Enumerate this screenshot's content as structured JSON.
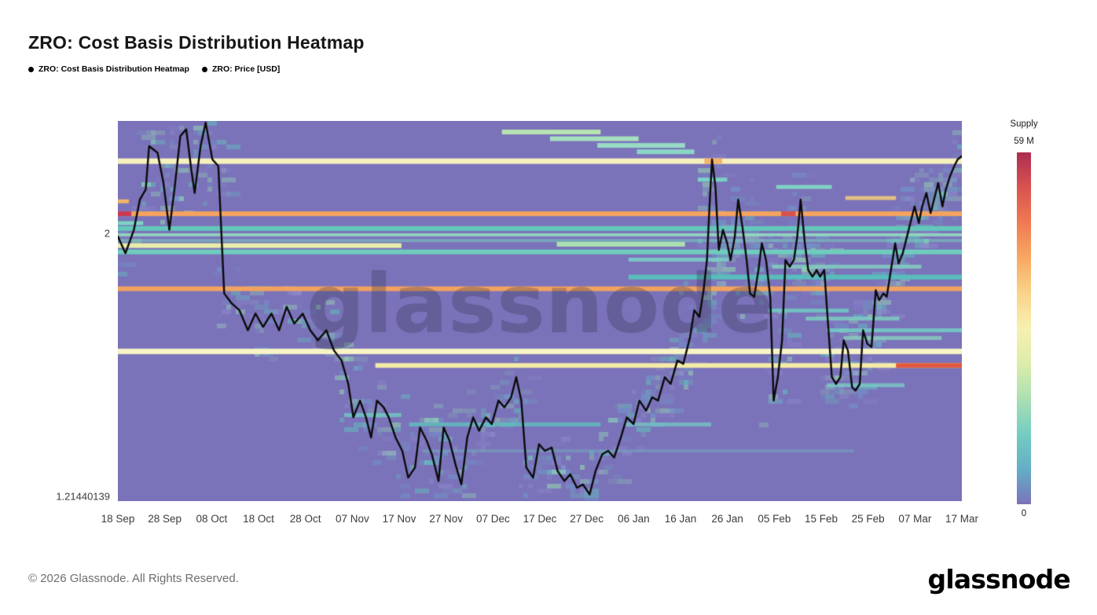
{
  "page": {
    "title": "ZRO: Cost Basis Distribution Heatmap",
    "footer_copyright": "© 2026 Glassnode. All Rights Reserved.",
    "brand_logo": "glassnode",
    "watermark": "glassnode"
  },
  "legend": {
    "items": [
      {
        "label": "ZRO: Cost Basis Distribution Heatmap"
      },
      {
        "label": "ZRO: Price [USD]"
      }
    ]
  },
  "colorbar": {
    "title": "Supply",
    "max_label": "59 M",
    "min_label": "0",
    "stops": [
      "#ad2d52",
      "#d95350",
      "#f07a52",
      "#f8a863",
      "#f9d389",
      "#f7f0b0",
      "#dcedaa",
      "#abdfb2",
      "#74cdc2",
      "#64aec6",
      "#7b73ba"
    ]
  },
  "chart_data": {
    "type": "heatmap",
    "title": "ZRO: Cost Basis Distribution Heatmap",
    "background_color": "#7b73ba",
    "price_line_color": "#0b0b0b",
    "watermark_color": "rgba(42,38,68,0.28)",
    "noise_palette": [
      "96,198,188",
      "150,220,176",
      "110,160,205",
      "144,138,206"
    ],
    "x_axis": {
      "ticks": [
        "18 Sep",
        "28 Sep",
        "08 Oct",
        "18 Oct",
        "28 Oct",
        "07 Nov",
        "17 Nov",
        "27 Nov",
        "07 Dec",
        "17 Dec",
        "27 Dec",
        "06 Jan",
        "16 Jan",
        "26 Jan",
        "05 Feb",
        "15 Feb",
        "25 Feb",
        "07 Mar",
        "17 Mar"
      ]
    },
    "y_axis": {
      "domain": [
        1.2,
        2.335
      ],
      "ticks": [
        {
          "label": "2",
          "price": 2.0
        },
        {
          "label": "1.21440139",
          "price": 1.2144
        }
      ]
    },
    "supply_bands": [
      {
        "p": 2.302,
        "x0": 0.455,
        "x1": 0.572,
        "c": "#b7e4b2",
        "h": 6
      },
      {
        "p": 2.282,
        "x0": 0.512,
        "x1": 0.617,
        "c": "#a6dfbd",
        "h": 6
      },
      {
        "p": 2.262,
        "x0": 0.568,
        "x1": 0.672,
        "c": "#97dbc4",
        "h": 6
      },
      {
        "p": 2.243,
        "x0": 0.615,
        "x1": 0.683,
        "c": "#8bd6c6",
        "h": 6
      },
      {
        "p": 2.215,
        "x0": 0,
        "x1": 1,
        "c": "#f6f0bd",
        "h": 7
      },
      {
        "p": 2.215,
        "x0": 0.695,
        "x1": 0.716,
        "c": "#f4b469",
        "h": 7
      },
      {
        "p": 2.16,
        "x0": 0.687,
        "x1": 0.722,
        "c": "#7bd0c4",
        "h": 5
      },
      {
        "p": 2.138,
        "x0": 0.78,
        "x1": 0.846,
        "c": "#80d2c2",
        "h": 5
      },
      {
        "p": 2.105,
        "x0": 0.862,
        "x1": 0.922,
        "c": "rgba(246,204,122,0.85)",
        "h": 5
      },
      {
        "p": 2.095,
        "x0": 0,
        "x1": 0.013,
        "c": "#f2b368",
        "h": 5
      },
      {
        "p": 2.058,
        "x0": 0,
        "x1": 1,
        "c": "#f4a45e",
        "h": 6
      },
      {
        "p": 2.058,
        "x0": 0,
        "x1": 0.016,
        "c": "#c93a55",
        "h": 6
      },
      {
        "p": 2.058,
        "x0": 0.786,
        "x1": 0.803,
        "c": "#d7514e",
        "h": 6
      },
      {
        "p": 2.03,
        "x0": 0,
        "x1": 0.03,
        "c": "#7fd2c2",
        "h": 5
      },
      {
        "p": 2.014,
        "x0": 0,
        "x1": 1,
        "c": "#63c7bb",
        "h": 6
      },
      {
        "p": 1.995,
        "x0": 0,
        "x1": 1,
        "c": "rgba(146,217,191,0.9)",
        "h": 4
      },
      {
        "p": 1.978,
        "x0": 0,
        "x1": 1,
        "c": "rgba(122,206,190,0.55)",
        "h": 4
      },
      {
        "p": 1.963,
        "x0": 0,
        "x1": 0.336,
        "c": "#e7edaa",
        "h": 6
      },
      {
        "p": 1.967,
        "x0": 0.52,
        "x1": 0.672,
        "c": "#abe0b1",
        "h": 6
      },
      {
        "p": 1.944,
        "x0": 0,
        "x1": 1,
        "c": "#70ccbe",
        "h": 6
      },
      {
        "p": 1.921,
        "x0": 0.605,
        "x1": 0.724,
        "c": "rgba(123,208,197,0.85)",
        "h": 5
      },
      {
        "p": 1.9,
        "x0": 0.775,
        "x1": 0.952,
        "c": "rgba(132,211,192,0.8)",
        "h": 5
      },
      {
        "p": 1.869,
        "x0": 0.605,
        "x1": 1,
        "c": "#58bdbb",
        "h": 6
      },
      {
        "p": 1.834,
        "x0": 0,
        "x1": 1,
        "c": "#f2a35f",
        "h": 6
      },
      {
        "p": 1.769,
        "x0": 0.77,
        "x1": 0.866,
        "c": "rgba(111,203,194,0.85)",
        "h": 5
      },
      {
        "p": 1.745,
        "x0": 0.815,
        "x1": 0.926,
        "c": "rgba(125,209,192,0.8)",
        "h": 5
      },
      {
        "p": 1.71,
        "x0": 0.84,
        "x1": 1,
        "c": "rgba(116,206,196,0.85)",
        "h": 5
      },
      {
        "p": 1.687,
        "x0": 0.86,
        "x1": 0.976,
        "c": "rgba(138,213,189,0.75)",
        "h": 5
      },
      {
        "p": 1.647,
        "x0": 0,
        "x1": 1,
        "c": "#f7f3c6",
        "h": 7
      },
      {
        "p": 1.605,
        "x0": 0.305,
        "x1": 1,
        "c": "#f3eba6",
        "h": 6
      },
      {
        "p": 1.605,
        "x0": 0.922,
        "x1": 1,
        "c": "#e2593e",
        "h": 6
      },
      {
        "p": 1.546,
        "x0": 0.84,
        "x1": 0.932,
        "c": "rgba(121,207,197,0.75)",
        "h": 5
      },
      {
        "p": 1.457,
        "x0": 0.268,
        "x1": 0.336,
        "c": "rgba(111,203,194,0.8)",
        "h": 5
      },
      {
        "p": 1.429,
        "x0": 0.345,
        "x1": 0.572,
        "c": "rgba(95,192,189,0.8)",
        "h": 5
      },
      {
        "p": 1.429,
        "x0": 0.6,
        "x1": 0.703,
        "c": "rgba(116,206,196,0.7)",
        "h": 5
      },
      {
        "p": 1.35,
        "x0": 0.36,
        "x1": 0.872,
        "c": "rgba(110,195,190,0.35)",
        "h": 4
      }
    ],
    "price_series": [
      [
        0.0,
        1.99
      ],
      [
        0.009,
        1.94
      ],
      [
        0.019,
        2.01
      ],
      [
        0.026,
        2.1
      ],
      [
        0.033,
        2.13
      ],
      [
        0.037,
        2.26
      ],
      [
        0.047,
        2.24
      ],
      [
        0.054,
        2.15
      ],
      [
        0.061,
        2.01
      ],
      [
        0.067,
        2.13
      ],
      [
        0.074,
        2.29
      ],
      [
        0.081,
        2.31
      ],
      [
        0.087,
        2.19
      ],
      [
        0.091,
        2.12
      ],
      [
        0.098,
        2.26
      ],
      [
        0.104,
        2.33
      ],
      [
        0.112,
        2.22
      ],
      [
        0.119,
        2.2
      ],
      [
        0.126,
        1.82
      ],
      [
        0.135,
        1.79
      ],
      [
        0.144,
        1.77
      ],
      [
        0.154,
        1.71
      ],
      [
        0.163,
        1.76
      ],
      [
        0.172,
        1.72
      ],
      [
        0.182,
        1.76
      ],
      [
        0.191,
        1.71
      ],
      [
        0.2,
        1.78
      ],
      [
        0.209,
        1.73
      ],
      [
        0.219,
        1.76
      ],
      [
        0.228,
        1.71
      ],
      [
        0.237,
        1.68
      ],
      [
        0.247,
        1.71
      ],
      [
        0.256,
        1.65
      ],
      [
        0.265,
        1.62
      ],
      [
        0.273,
        1.55
      ],
      [
        0.279,
        1.45
      ],
      [
        0.287,
        1.5
      ],
      [
        0.294,
        1.45
      ],
      [
        0.3,
        1.39
      ],
      [
        0.307,
        1.5
      ],
      [
        0.315,
        1.48
      ],
      [
        0.321,
        1.45
      ],
      [
        0.329,
        1.39
      ],
      [
        0.337,
        1.35
      ],
      [
        0.344,
        1.27
      ],
      [
        0.352,
        1.3
      ],
      [
        0.358,
        1.42
      ],
      [
        0.366,
        1.38
      ],
      [
        0.372,
        1.34
      ],
      [
        0.38,
        1.26
      ],
      [
        0.386,
        1.42
      ],
      [
        0.393,
        1.38
      ],
      [
        0.4,
        1.31
      ],
      [
        0.407,
        1.25
      ],
      [
        0.414,
        1.39
      ],
      [
        0.421,
        1.45
      ],
      [
        0.428,
        1.41
      ],
      [
        0.436,
        1.45
      ],
      [
        0.443,
        1.43
      ],
      [
        0.451,
        1.5
      ],
      [
        0.458,
        1.48
      ],
      [
        0.466,
        1.51
      ],
      [
        0.472,
        1.57
      ],
      [
        0.478,
        1.5
      ],
      [
        0.484,
        1.3
      ],
      [
        0.492,
        1.27
      ],
      [
        0.499,
        1.37
      ],
      [
        0.506,
        1.35
      ],
      [
        0.514,
        1.36
      ],
      [
        0.521,
        1.29
      ],
      [
        0.529,
        1.26
      ],
      [
        0.536,
        1.28
      ],
      [
        0.544,
        1.24
      ],
      [
        0.551,
        1.25
      ],
      [
        0.559,
        1.22
      ],
      [
        0.566,
        1.29
      ],
      [
        0.574,
        1.34
      ],
      [
        0.581,
        1.35
      ],
      [
        0.588,
        1.33
      ],
      [
        0.596,
        1.39
      ],
      [
        0.603,
        1.45
      ],
      [
        0.611,
        1.43
      ],
      [
        0.618,
        1.5
      ],
      [
        0.626,
        1.47
      ],
      [
        0.633,
        1.51
      ],
      [
        0.64,
        1.5
      ],
      [
        0.648,
        1.57
      ],
      [
        0.655,
        1.55
      ],
      [
        0.663,
        1.62
      ],
      [
        0.67,
        1.61
      ],
      [
        0.678,
        1.69
      ],
      [
        0.683,
        1.77
      ],
      [
        0.689,
        1.75
      ],
      [
        0.694,
        1.83
      ],
      [
        0.698,
        1.92
      ],
      [
        0.701,
        2.08
      ],
      [
        0.704,
        2.22
      ],
      [
        0.708,
        2.14
      ],
      [
        0.712,
        1.95
      ],
      [
        0.717,
        2.01
      ],
      [
        0.722,
        1.97
      ],
      [
        0.726,
        1.92
      ],
      [
        0.731,
        1.99
      ],
      [
        0.735,
        2.1
      ],
      [
        0.74,
        2.02
      ],
      [
        0.745,
        1.92
      ],
      [
        0.749,
        1.82
      ],
      [
        0.754,
        1.81
      ],
      [
        0.759,
        1.89
      ],
      [
        0.763,
        1.97
      ],
      [
        0.768,
        1.92
      ],
      [
        0.773,
        1.81
      ],
      [
        0.777,
        1.5
      ],
      [
        0.782,
        1.57
      ],
      [
        0.787,
        1.68
      ],
      [
        0.791,
        1.92
      ],
      [
        0.796,
        1.9
      ],
      [
        0.801,
        1.92
      ],
      [
        0.805,
        1.99
      ],
      [
        0.809,
        2.1
      ],
      [
        0.814,
        1.97
      ],
      [
        0.818,
        1.89
      ],
      [
        0.823,
        1.87
      ],
      [
        0.828,
        1.89
      ],
      [
        0.832,
        1.87
      ],
      [
        0.837,
        1.89
      ],
      [
        0.842,
        1.71
      ],
      [
        0.846,
        1.57
      ],
      [
        0.851,
        1.55
      ],
      [
        0.856,
        1.57
      ],
      [
        0.86,
        1.68
      ],
      [
        0.865,
        1.65
      ],
      [
        0.87,
        1.54
      ],
      [
        0.874,
        1.53
      ],
      [
        0.879,
        1.55
      ],
      [
        0.883,
        1.71
      ],
      [
        0.888,
        1.67
      ],
      [
        0.893,
        1.66
      ],
      [
        0.898,
        1.83
      ],
      [
        0.902,
        1.8
      ],
      [
        0.907,
        1.82
      ],
      [
        0.911,
        1.81
      ],
      [
        0.916,
        1.89
      ],
      [
        0.921,
        1.97
      ],
      [
        0.925,
        1.91
      ],
      [
        0.93,
        1.94
      ],
      [
        0.935,
        1.99
      ],
      [
        0.939,
        2.03
      ],
      [
        0.944,
        2.08
      ],
      [
        0.949,
        2.03
      ],
      [
        0.953,
        2.08
      ],
      [
        0.958,
        2.12
      ],
      [
        0.963,
        2.06
      ],
      [
        0.967,
        2.1
      ],
      [
        0.972,
        2.15
      ],
      [
        0.977,
        2.08
      ],
      [
        0.981,
        2.13
      ],
      [
        0.986,
        2.17
      ],
      [
        0.991,
        2.2
      ],
      [
        0.995,
        2.22
      ],
      [
        1.0,
        2.23
      ]
    ]
  }
}
